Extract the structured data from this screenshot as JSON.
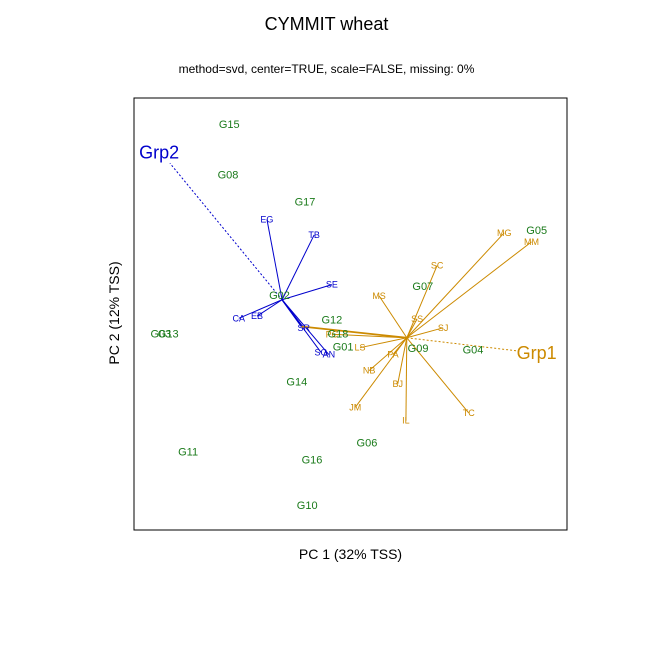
{
  "chart_data": {
    "type": "scatter",
    "subtype": "biplot",
    "title": "CYMMIT wheat",
    "subtitle": "method=svd, center=TRUE, scale=FALSE, missing: 0%",
    "xlabel": "PC 1 (32% TSS)",
    "ylabel": "PC 2 (12% TSS)",
    "xlim": [
      0,
      100
    ],
    "ylim": [
      0,
      100
    ],
    "grid": false,
    "legend": "none",
    "colors": {
      "genotype": "#1a7a1a",
      "grp1": "#cc8a00",
      "grp2": "#0000cc"
    },
    "genotypes": [
      {
        "label": "G15",
        "x": 22.0,
        "y": 93.7
      },
      {
        "label": "G08",
        "x": 21.7,
        "y": 82.1
      },
      {
        "label": "G17",
        "x": 39.5,
        "y": 75.8
      },
      {
        "label": "G05",
        "x": 93.0,
        "y": 69.2
      },
      {
        "label": "G07",
        "x": 66.7,
        "y": 56.3
      },
      {
        "label": "G02",
        "x": 33.6,
        "y": 54.2
      },
      {
        "label": "G12",
        "x": 45.7,
        "y": 48.5
      },
      {
        "label": "G18",
        "x": 47.1,
        "y": 45.3
      },
      {
        "label": "G13",
        "x": 7.9,
        "y": 45.3
      },
      {
        "label": "G03",
        "x": 6.2,
        "y": 45.3
      },
      {
        "label": "G09",
        "x": 65.6,
        "y": 41.9
      },
      {
        "label": "G01",
        "x": 48.3,
        "y": 42.2
      },
      {
        "label": "G04",
        "x": 78.3,
        "y": 41.6
      },
      {
        "label": "G14",
        "x": 37.6,
        "y": 34.2
      },
      {
        "label": "G06",
        "x": 53.8,
        "y": 20.0
      },
      {
        "label": "G11",
        "x": 12.5,
        "y": 17.9
      },
      {
        "label": "G16",
        "x": 41.1,
        "y": 16.1
      },
      {
        "label": "G10",
        "x": 40.0,
        "y": 5.6
      }
    ],
    "grp1": {
      "label": "Grp1",
      "origin": [
        63.0,
        44.5
      ],
      "label_pos": [
        93.0,
        41.0
      ],
      "vectors": [
        {
          "label": "MG",
          "x": 85.5,
          "y": 68.8
        },
        {
          "label": "MM",
          "x": 91.8,
          "y": 66.7
        },
        {
          "label": "SC",
          "x": 70.0,
          "y": 61.2
        },
        {
          "label": "MS",
          "x": 56.6,
          "y": 54.2
        },
        {
          "label": "SS",
          "x": 65.4,
          "y": 48.9
        },
        {
          "label": "SJ",
          "x": 71.4,
          "y": 46.8
        },
        {
          "label": "PC",
          "x": 45.7,
          "y": 45.3
        },
        {
          "label": "LS",
          "x": 52.2,
          "y": 42.2
        },
        {
          "label": "PA",
          "x": 59.8,
          "y": 40.6
        },
        {
          "label": "NB",
          "x": 54.3,
          "y": 36.9
        },
        {
          "label": "BJ",
          "x": 60.9,
          "y": 33.8
        },
        {
          "label": "JM",
          "x": 51.1,
          "y": 28.4
        },
        {
          "label": "IL",
          "x": 62.8,
          "y": 25.3
        },
        {
          "label": "TC",
          "x": 77.3,
          "y": 27.1
        }
      ]
    },
    "grp2": {
      "label": "Grp2",
      "origin": [
        34.2,
        53.3
      ],
      "label_pos": [
        5.8,
        87.4
      ],
      "vectors": [
        {
          "label": "EG",
          "x": 30.7,
          "y": 71.9
        },
        {
          "label": "TB",
          "x": 41.6,
          "y": 68.3
        },
        {
          "label": "SE",
          "x": 45.7,
          "y": 56.8
        },
        {
          "label": "CA",
          "x": 24.2,
          "y": 49.0
        },
        {
          "label": "EB",
          "x": 28.4,
          "y": 49.5
        },
        {
          "label": "SR",
          "x": 39.2,
          "y": 46.8
        },
        {
          "label": "SG",
          "x": 43.2,
          "y": 41.1
        },
        {
          "label": "AN",
          "x": 45.0,
          "y": 40.6
        }
      ]
    }
  }
}
